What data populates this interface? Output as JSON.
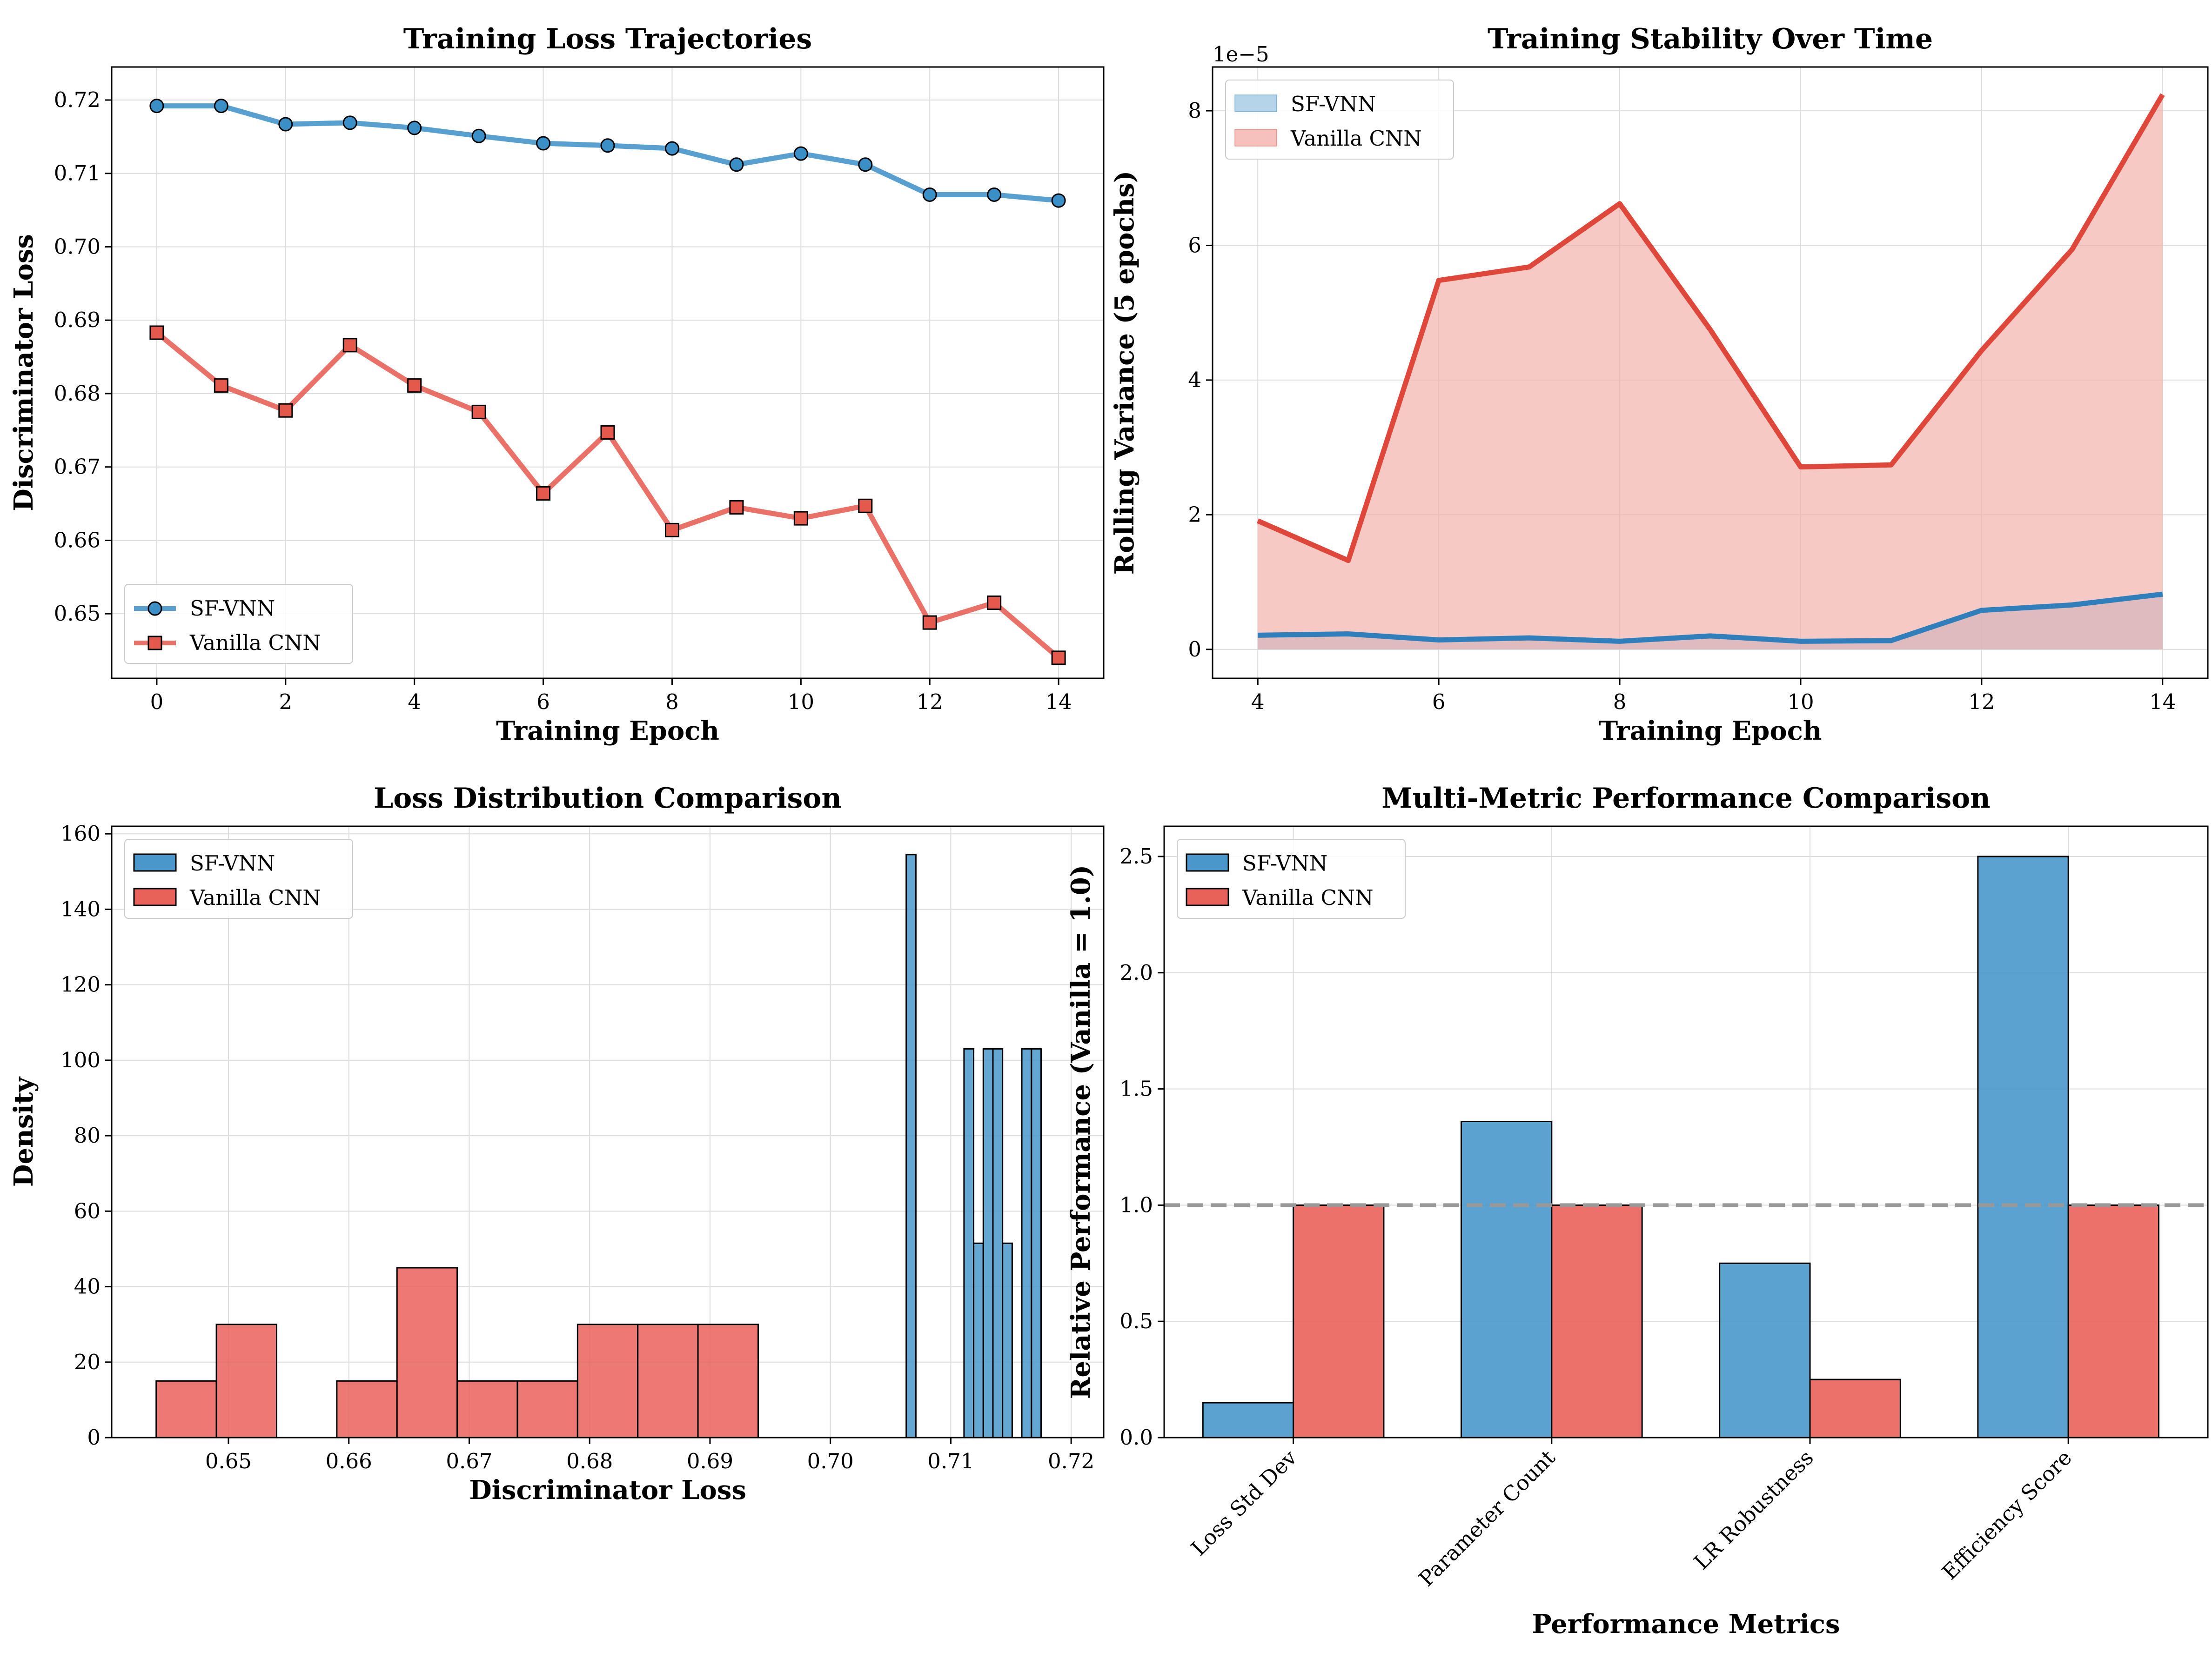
{
  "chart_data": [
    {
      "type": "line",
      "title": "Training Loss Trajectories",
      "xlabel": "Training Epoch",
      "ylabel": "Discriminator Loss",
      "xlim": [
        -0.7,
        14.7
      ],
      "ylim": [
        0.6412,
        0.7245
      ],
      "xticks": [
        0,
        2,
        4,
        6,
        8,
        10,
        12,
        14
      ],
      "yticks": [
        0.65,
        0.66,
        0.67,
        0.68,
        0.69,
        0.7,
        0.71,
        0.72
      ],
      "ytick_labels": [
        "0.65",
        "0.66",
        "0.67",
        "0.68",
        "0.69",
        "0.70",
        "0.71",
        "0.72"
      ],
      "grid": true,
      "legend": "lower-left",
      "x": [
        0,
        1,
        2,
        3,
        4,
        5,
        6,
        7,
        8,
        9,
        10,
        11,
        12,
        13,
        14
      ],
      "series": [
        {
          "name": "SF-VNN",
          "color": "#3a8fc7",
          "marker": "circle",
          "values": [
            0.7192,
            0.7192,
            0.7167,
            0.7169,
            0.7162,
            0.7151,
            0.7141,
            0.7138,
            0.7134,
            0.7112,
            0.7127,
            0.7112,
            0.7071,
            0.7071,
            0.7063
          ]
        },
        {
          "name": "Vanilla CNN",
          "color": "#e5584c",
          "marker": "square",
          "values": [
            0.6883,
            0.6811,
            0.6777,
            0.6866,
            0.6811,
            0.6775,
            0.6664,
            0.6747,
            0.6614,
            0.6645,
            0.663,
            0.6647,
            0.6488,
            0.6515,
            0.644
          ]
        }
      ]
    },
    {
      "type": "area",
      "title": "Training Stability Over Time",
      "xlabel": "Training Epoch",
      "ylabel": "Rolling Variance (5 epochs)",
      "offset_label": "1e−5",
      "xlim": [
        3.5,
        14.5
      ],
      "ylim": [
        -0.43,
        8.65
      ],
      "xticks": [
        4,
        6,
        8,
        10,
        12,
        14
      ],
      "yticks": [
        0,
        2,
        4,
        6,
        8
      ],
      "grid": true,
      "legend": "upper-left",
      "x": [
        4,
        5,
        6,
        7,
        8,
        9,
        10,
        11,
        12,
        13,
        14
      ],
      "series": [
        {
          "name": "SF-VNN",
          "color": "#2f7fbd",
          "fill": "#9cc5e3",
          "values": [
            0.21,
            0.23,
            0.14,
            0.17,
            0.12,
            0.2,
            0.12,
            0.13,
            0.58,
            0.66,
            0.82
          ]
        },
        {
          "name": "Vanilla CNN",
          "color": "#e0473b",
          "fill": "#f3aca5",
          "values": [
            1.91,
            1.32,
            5.48,
            5.68,
            6.62,
            4.75,
            2.71,
            2.74,
            4.44,
            5.94,
            8.24
          ]
        }
      ]
    },
    {
      "type": "histogram",
      "title": "Loss Distribution Comparison",
      "xlabel": "Discriminator Loss",
      "ylabel": "Density",
      "xlim": [
        0.6403,
        0.7227
      ],
      "ylim": [
        0,
        162
      ],
      "xticks": [
        0.65,
        0.66,
        0.67,
        0.68,
        0.69,
        0.7,
        0.71,
        0.72
      ],
      "xtick_labels": [
        "0.65",
        "0.66",
        "0.67",
        "0.68",
        "0.69",
        "0.70",
        "0.71",
        "0.72"
      ],
      "yticks": [
        0,
        20,
        40,
        60,
        80,
        100,
        120,
        140,
        160
      ],
      "grid": true,
      "legend": "upper-left",
      "series": [
        {
          "name": "SF-VNN",
          "color": "#4a98cb",
          "bins": [
            [
              0.7063,
              0.7071,
              154.5
            ],
            [
              0.7071,
              0.7079,
              0
            ],
            [
              0.7079,
              0.7087,
              0
            ],
            [
              0.7087,
              0.7095,
              0
            ],
            [
              0.7095,
              0.7103,
              0
            ],
            [
              0.7103,
              0.7111,
              0
            ],
            [
              0.7111,
              0.7119,
              103
            ],
            [
              0.7119,
              0.7127,
              51.5
            ],
            [
              0.7127,
              0.7135,
              103
            ],
            [
              0.7135,
              0.7143,
              103
            ],
            [
              0.7143,
              0.7151,
              51.5
            ],
            [
              0.7151,
              0.7159,
              0
            ],
            [
              0.7159,
              0.7167,
              103
            ],
            [
              0.7167,
              0.7175,
              103
            ]
          ]
        },
        {
          "name": "Vanilla CNN",
          "color": "#e9625a",
          "bins": [
            [
              0.644,
              0.649,
              15
            ],
            [
              0.649,
              0.654,
              30
            ],
            [
              0.654,
              0.659,
              0
            ],
            [
              0.659,
              0.664,
              15
            ],
            [
              0.664,
              0.669,
              45
            ],
            [
              0.669,
              0.674,
              15
            ],
            [
              0.674,
              0.679,
              15
            ],
            [
              0.679,
              0.684,
              30
            ],
            [
              0.684,
              0.689,
              30
            ],
            [
              0.689,
              0.694,
              30
            ]
          ]
        }
      ]
    },
    {
      "type": "bar",
      "title": "Multi-Metric Performance Comparison",
      "xlabel": "Performance Metrics",
      "ylabel": "Relative Performance (Vanilla = 1.0)",
      "categories": [
        "Loss Std Dev",
        "Parameter Count",
        "LR Robustness",
        "Efficiency Score"
      ],
      "ylim": [
        0,
        2.63
      ],
      "yticks": [
        0.0,
        0.5,
        1.0,
        1.5,
        2.0,
        2.5
      ],
      "ytick_labels": [
        "0.0",
        "0.5",
        "1.0",
        "1.5",
        "2.0",
        "2.5"
      ],
      "reference_line": 1.0,
      "grid": true,
      "legend": "upper-left",
      "series": [
        {
          "name": "SF-VNN",
          "color": "#4a98cb",
          "values": [
            0.15,
            1.36,
            0.75,
            2.5
          ]
        },
        {
          "name": "Vanilla CNN",
          "color": "#e9625a",
          "values": [
            1.0,
            1.0,
            0.25,
            1.0
          ]
        }
      ]
    }
  ]
}
